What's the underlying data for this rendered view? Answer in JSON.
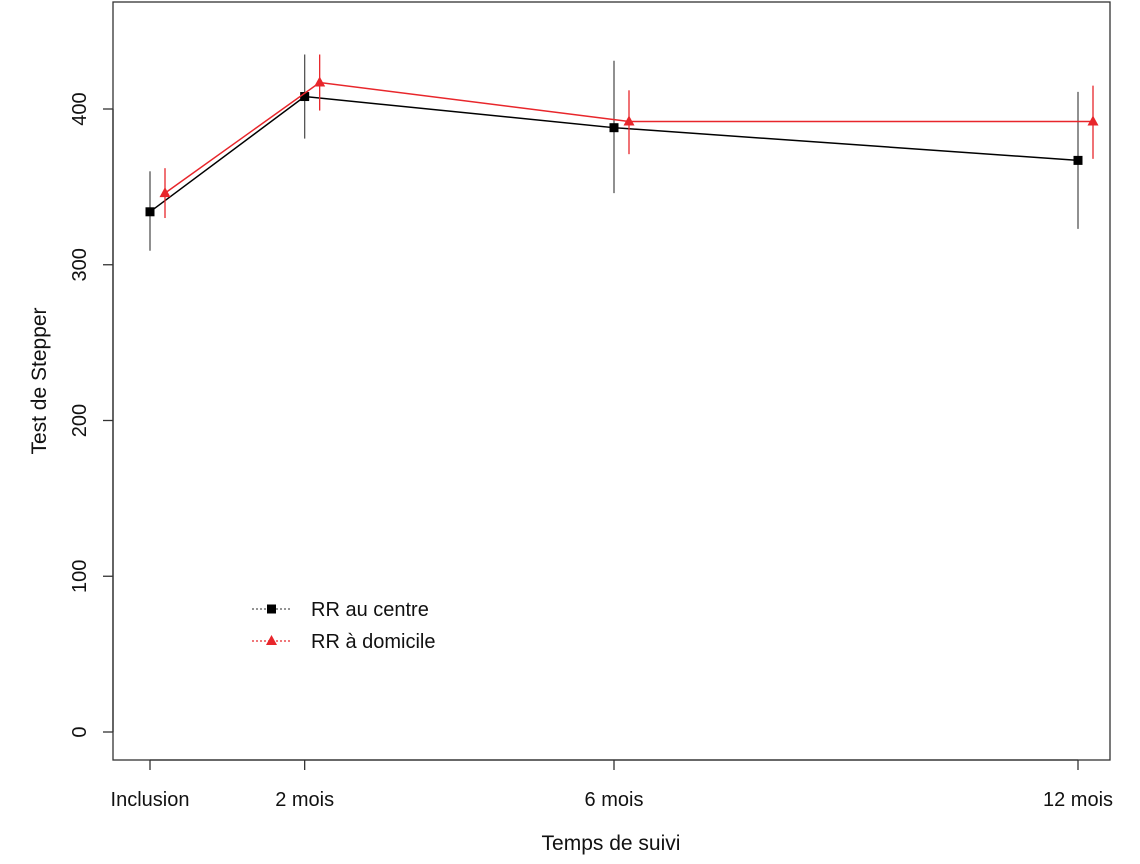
{
  "chart_data": {
    "type": "line",
    "title": "",
    "xlabel": "Temps de suivi",
    "ylabel": "Test de Stepper",
    "x": [
      0,
      2,
      6,
      12
    ],
    "x_tick_labels": [
      "Inclusion",
      "2 mois",
      "6 mois",
      "12 mois"
    ],
    "ylim": [
      0,
      450
    ],
    "y_ticks": [
      0,
      100,
      200,
      300,
      400
    ],
    "xlim": [
      -0.4,
      12.4
    ],
    "grid": false,
    "legend_position": "bottom-left",
    "series": [
      {
        "name": "RR au centre",
        "color": "#000000",
        "marker": "square",
        "values": [
          334,
          408,
          388,
          367
        ],
        "err_low": [
          309,
          381,
          346,
          323
        ],
        "err_high": [
          360,
          435,
          431,
          411
        ]
      },
      {
        "name": "RR à domicile",
        "color": "#e8262b",
        "marker": "triangle",
        "values": [
          346,
          417,
          392,
          392
        ],
        "err_low": [
          330,
          399,
          371,
          368
        ],
        "err_high": [
          362,
          435,
          412,
          415
        ]
      }
    ]
  }
}
